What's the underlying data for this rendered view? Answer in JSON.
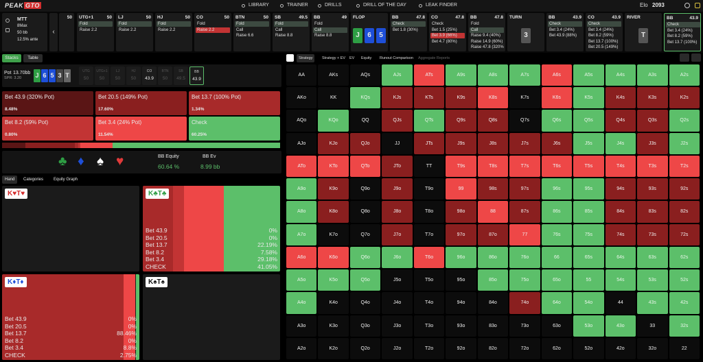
{
  "nav": {
    "logo": [
      "PEAK",
      "GTO"
    ],
    "items": [
      "LIBRARY",
      "TRAINER",
      "DRILLS",
      "DRILL OF THE DAY",
      "LEAK FINDER"
    ],
    "elo_label": "Elo",
    "elo": "2093"
  },
  "game_info": [
    "MTT",
    "8Max",
    "50 bb",
    "12.5% ante"
  ],
  "action_columns": [
    {
      "stack": "50",
      "options": []
    },
    {
      "name": "UTG+1",
      "stack": "50",
      "options": [
        "Fold",
        "Raise 2.2"
      ],
      "selected": 0
    },
    {
      "name": "LJ",
      "stack": "50",
      "options": [
        "Fold",
        "Raise 2.2"
      ],
      "selected": 0
    },
    {
      "name": "HJ",
      "stack": "50",
      "options": [
        "Fold",
        "Raise 2.2"
      ],
      "selected": 0
    },
    {
      "name": "CO",
      "stack": "50",
      "options": [
        "Fold",
        "Raise 2.2"
      ],
      "selected": 1,
      "selected_style": "bet"
    },
    {
      "name": "BTN",
      "stack": "50",
      "options": [
        "Fold",
        "Call",
        "Raise 6.6"
      ],
      "selected": 0
    },
    {
      "name": "SB",
      "stack": "49.5",
      "options": [
        "Fold",
        "Call",
        "Raise 8.8"
      ],
      "selected": 0
    },
    {
      "name": "BB",
      "stack": "49",
      "options": [
        "Fold",
        "Call",
        "Raise 8.8"
      ],
      "selected": 1
    },
    {
      "name": "FLOP",
      "cards": [
        {
          "rank": "J",
          "color": "#2e9e44"
        },
        {
          "rank": "6",
          "color": "#1e4fd8"
        },
        {
          "rank": "5",
          "color": "#1e4fd8"
        }
      ]
    },
    {
      "name": "BB",
      "stack": "47.8",
      "options": [
        "Check",
        "Bet 1.8 (30%)"
      ],
      "selected": 0
    },
    {
      "name": "CO",
      "stack": "47.8",
      "options": [
        "Check",
        "Bet 1.5 (25%)",
        "Bet 3.9 (66%)",
        "Bet 4.7 (80%)"
      ],
      "selected": 2,
      "selected_style": "bet"
    },
    {
      "name": "BB",
      "stack": "47.8",
      "options": [
        "Fold",
        "Call",
        "Raise 9.4 (40%)",
        "Raise 14.9 (60%)",
        "Raise 47.8 (320%)"
      ],
      "selected": 1
    },
    {
      "name": "TURN",
      "cards": [
        {
          "rank": "3",
          "color": "#555555"
        }
      ]
    },
    {
      "name": "BB",
      "stack": "43.9",
      "options": [
        "Check",
        "Bet 3.4 (24%)",
        "Bet 43.9 (88%)"
      ],
      "selected": 0
    },
    {
      "name": "CO",
      "stack": "43.9",
      "options": [
        "Check",
        "Bet 3.4 (24%)",
        "Bet 8.2 (59%)",
        "Bet 13.7 (100%)",
        "Bet 20.5 (149%)"
      ],
      "selected": 0
    },
    {
      "name": "RIVER",
      "cards": [
        {
          "rank": "T",
          "color": "#555555"
        }
      ]
    },
    {
      "name": "BB",
      "stack": "43.9",
      "options": [
        "Check",
        "Bet 3.4 (24%)",
        "Bet 8.2 (59%)",
        "Bet 13.7 (100%)"
      ],
      "selected": 0,
      "active": true
    }
  ],
  "left_tabs": [
    "Stacks",
    "Table"
  ],
  "pot": {
    "label": "Pot",
    "value": "13.70bb",
    "spr": "SPR: 3.20",
    "board": [
      {
        "rank": "J",
        "color": "#2e9e44"
      },
      {
        "rank": "6",
        "color": "#1e4fd8"
      },
      {
        "rank": "5",
        "color": "#1e4fd8"
      },
      {
        "rank": "3",
        "color": "#444444"
      },
      {
        "rank": "T",
        "color": "#666666"
      }
    ]
  },
  "seats": {
    "names": [
      "UTG",
      "UTG+1",
      "LJ",
      "HJ",
      "CO",
      "BTN",
      "SB",
      "BB"
    ],
    "stacks": [
      "50",
      "50",
      "50",
      "50",
      "43.9",
      "50",
      "49.5",
      "43.9"
    ],
    "highlight": [
      4,
      7
    ],
    "selected": 7
  },
  "strategy": {
    "actions": [
      "Bet 43.9 (320% Pot)",
      "Bet 20.5 (149% Pot)",
      "Bet 13.7 (100% Pot)",
      "Bet 8.2 (59% Pot)",
      "Bet 3.4 (24% Pot)",
      "Check"
    ],
    "values": [
      8.48,
      17.6,
      1.34,
      0.8,
      11.54,
      60.25
    ],
    "value_labels": [
      "8.48%",
      "17.60%",
      "1.34%",
      "0.80%",
      "11.54%",
      "60.25%"
    ],
    "colors": [
      "#5a1515",
      "#8a1f1f",
      "#a82a2a",
      "#c23434",
      "#ee4747",
      "#5cbf6a"
    ]
  },
  "suit_filters": [
    {
      "glyph": "♣",
      "color": "#2e9e44"
    },
    {
      "glyph": "♦",
      "color": "#1e4fd8"
    },
    {
      "glyph": "♠",
      "color": "#ffffff"
    },
    {
      "glyph": "♥",
      "color": "#e03a3a"
    }
  ],
  "equity": {
    "label": "BB Equity",
    "value": "60.64 %",
    "ev_label": "BB Ev",
    "ev": "8.99 bb"
  },
  "hand_tabs": [
    "Hand",
    "Categories",
    "Equity Graph"
  ],
  "hands": [
    {
      "label": "K♥T♥",
      "color": "#d42b2b"
    },
    {
      "label": "K♣T♣",
      "color": "#2e9e44",
      "actions": [
        "Bet 43.9",
        "Bet 20.5",
        "Bet 13.7",
        "Bet 8.2",
        "Bet 3.4",
        "CHECK"
      ],
      "values": [
        0,
        0,
        22.19,
        7.58,
        29.18,
        41.05
      ],
      "value_labels": [
        "0%",
        "0%",
        "22.19%",
        "7.58%",
        "29.18%",
        "41.05%"
      ]
    },
    {
      "label": "K♦T♦",
      "color": "#1e4fd8",
      "actions": [
        "Bet 43.9",
        "Bet 20.5",
        "Bet 13.7",
        "Bet 8.2",
        "Bet 3.4",
        "CHECK"
      ],
      "values": [
        0,
        0,
        88.46,
        0,
        8.8,
        2.75
      ],
      "value_labels": [
        "0%",
        "0%",
        "88.46%",
        "0%",
        "8.8%",
        "2.75%"
      ]
    },
    {
      "label": "K♠T♠",
      "color": "#111111"
    }
  ],
  "right_tabs": [
    "Strategy",
    "Strategy + EV",
    "EV",
    "Equity",
    "Runout Comparison",
    "Aggregate Reports"
  ],
  "grid_colors": {
    "g": "#5cbf6a",
    "r": "#ee4747",
    "d": "#8a1f1f",
    "x": "#0c0c0c"
  },
  "grid_codes": [
    "xxxgrgggrgggg",
    "xxgdddrxrgddd",
    "xgxdgddxggddg",
    "xddxdddddggdg",
    "rrrdxrrrrrrrr",
    "gdxdxrddggddd",
    "gdxdxdrdggddd",
    "gxxdxddrggddd",
    "rrggrgggggggg",
    "gggxxxggggggg",
    "gxxxxxxdggxgg",
    "xxxxxxxxxggxg",
    "xxxxxxxxxxxxx"
  ],
  "hand_grid": [
    [
      "AA",
      "AKs",
      "AQs",
      "AJs",
      "ATs",
      "A9s",
      "A8s",
      "A7s",
      "A6s",
      "A5s",
      "A4s",
      "A3s",
      "A2s"
    ],
    [
      "AKo",
      "KK",
      "KQs",
      "KJs",
      "KTs",
      "K9s",
      "K8s",
      "K7s",
      "K6s",
      "K5s",
      "K4s",
      "K3s",
      "K2s"
    ],
    [
      "AQo",
      "KQo",
      "QQ",
      "QJs",
      "QTs",
      "Q9s",
      "Q8s",
      "Q7s",
      "Q6s",
      "Q5s",
      "Q4s",
      "Q3s",
      "Q2s"
    ],
    [
      "AJo",
      "KJo",
      "QJo",
      "JJ",
      "JTs",
      "J9s",
      "J8s",
      "J7s",
      "J6s",
      "J5s",
      "J4s",
      "J3s",
      "J2s"
    ],
    [
      "ATo",
      "KTo",
      "QTo",
      "JTo",
      "TT",
      "T9s",
      "T8s",
      "T7s",
      "T6s",
      "T5s",
      "T4s",
      "T3s",
      "T2s"
    ],
    [
      "A9o",
      "K9o",
      "Q9o",
      "J9o",
      "T9o",
      "99",
      "98s",
      "97s",
      "96s",
      "95s",
      "94s",
      "93s",
      "92s"
    ],
    [
      "A8o",
      "K8o",
      "Q8o",
      "J8o",
      "T8o",
      "98o",
      "88",
      "87s",
      "86s",
      "85s",
      "84s",
      "83s",
      "82s"
    ],
    [
      "A7o",
      "K7o",
      "Q7o",
      "J7o",
      "T7o",
      "97o",
      "87o",
      "77",
      "76s",
      "75s",
      "74s",
      "73s",
      "72s"
    ],
    [
      "A6o",
      "K6o",
      "Q6o",
      "J6o",
      "T6o",
      "96o",
      "86o",
      "76o",
      "66",
      "65s",
      "64s",
      "63s",
      "62s"
    ],
    [
      "A5o",
      "K5o",
      "Q5o",
      "J5o",
      "T5o",
      "95o",
      "85o",
      "75o",
      "65o",
      "55",
      "54s",
      "53s",
      "52s"
    ],
    [
      "A4o",
      "K4o",
      "Q4o",
      "J4o",
      "T4o",
      "94o",
      "84o",
      "74o",
      "64o",
      "54o",
      "44",
      "43s",
      "42s"
    ],
    [
      "A3o",
      "K3o",
      "Q3o",
      "J3o",
      "T3o",
      "93o",
      "83o",
      "73o",
      "63o",
      "53o",
      "43o",
      "33",
      "32s"
    ],
    [
      "A2o",
      "K2o",
      "Q2o",
      "J2o",
      "T2o",
      "92o",
      "82o",
      "72o",
      "62o",
      "52o",
      "42o",
      "32o",
      "22"
    ]
  ]
}
